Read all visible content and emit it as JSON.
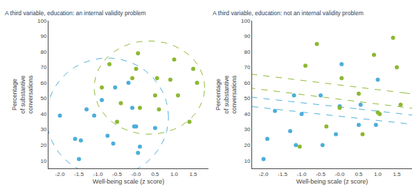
{
  "chart_data": [
    {
      "type": "scatter",
      "title": "A third variable, education: an internal validity problem",
      "xlabel": "Well-being scale (z score)",
      "ylabel": "Percentage\nof substantive\nconversations",
      "xlim": [
        -2.3,
        1.9
      ],
      "ylim": [
        5,
        100
      ],
      "xticks": [
        {
          "value": -2.0,
          "label": "-2.0"
        },
        -1.5,
        {
          "value": -1.0,
          "label": "-1.0"
        },
        -0.5,
        {
          "value": 0.0,
          "label": "-0.0"
        },
        0.5,
        {
          "value": 1.0,
          "label": "1.0"
        },
        1.5
      ],
      "yticks": [
        10,
        20,
        30,
        40,
        50,
        60,
        70,
        80,
        90,
        100
      ],
      "grid": false,
      "series": [
        {
          "color": "#4DAEDB",
          "marker": "circle",
          "x": [
            -2.0,
            -1.6,
            -1.5,
            -1.45,
            -1.3,
            -1.1,
            -0.9,
            -0.75,
            -0.6,
            -0.55,
            -0.2,
            -0.1,
            -0.05,
            0.0,
            0.05,
            0.1,
            0.5
          ],
          "values": [
            39,
            24,
            11,
            23,
            43,
            39,
            49,
            26,
            21,
            57,
            60,
            44,
            32,
            32,
            15,
            19,
            31
          ],
          "ellipse": {
            "cx": -0.75,
            "cy": 38,
            "rx": 1.6,
            "ry": 38,
            "angle": 0
          }
        },
        {
          "color": "#8CB832",
          "marker": "circle",
          "x": [
            -0.9,
            -0.7,
            -0.5,
            -0.4,
            -0.1,
            0.0,
            0.05,
            0.1,
            0.5,
            0.55,
            0.6,
            0.9,
            1.0,
            1.1,
            1.4,
            1.5,
            1.6
          ],
          "values": [
            57,
            72,
            35,
            47,
            63,
            69,
            79,
            44,
            52,
            63,
            43,
            62,
            75,
            52,
            35,
            69,
            60
          ],
          "ellipse": {
            "cx": 0.35,
            "cy": 57,
            "rx": 1.45,
            "ry": 30,
            "angle": 0
          }
        }
      ]
    },
    {
      "type": "scatter",
      "title": "A third variable, education: not an internal validity problem",
      "xlabel": "Well-being scale (z score)",
      "ylabel": "Percentage\nof substantive\nconversations",
      "xlim": [
        -2.3,
        1.9
      ],
      "ylim": [
        5,
        100
      ],
      "xticks": [
        {
          "value": -2.0,
          "label": "-2.0"
        },
        -1.5,
        {
          "value": -1.0,
          "label": "-1.0"
        },
        -0.5,
        {
          "value": 0.0,
          "label": "-0.0"
        },
        0.5,
        {
          "value": 1.0,
          "label": "1.0"
        },
        1.5
      ],
      "yticks": [
        10,
        20,
        30,
        40,
        50,
        60,
        70,
        80,
        90,
        100
      ],
      "grid": false,
      "series": [
        {
          "color": "#4DAEDB",
          "marker": "circle",
          "x": [
            -2.0,
            -1.9,
            -1.7,
            -1.3,
            -1.2,
            -1.15,
            -1.0,
            -0.5,
            -0.45,
            -0.1,
            0.0,
            0.05,
            0.5,
            0.55,
            0.95,
            1.0
          ],
          "values": [
            11,
            24,
            42,
            29,
            52,
            20,
            40,
            52,
            20,
            27,
            45,
            72,
            33,
            46,
            33,
            62
          ],
          "ellipse": {
            "cx": -0.55,
            "cy": 43,
            "rx": 1.05,
            "ry": 40,
            "angle": 20
          }
        },
        {
          "color": "#8CB832",
          "marker": "circle",
          "x": [
            -1.05,
            -0.9,
            -0.6,
            -0.35,
            -0.0,
            0.05,
            0.5,
            0.6,
            0.9,
            1.0,
            1.05,
            1.4,
            1.5,
            1.6
          ],
          "values": [
            19,
            71,
            85,
            32,
            44,
            63,
            53,
            27,
            78,
            41,
            40,
            89,
            70,
            46
          ],
          "ellipse": {
            "cx": 0.35,
            "cy": 53,
            "rx": 1.45,
            "ry": 44,
            "angle": 18
          }
        }
      ]
    }
  ]
}
